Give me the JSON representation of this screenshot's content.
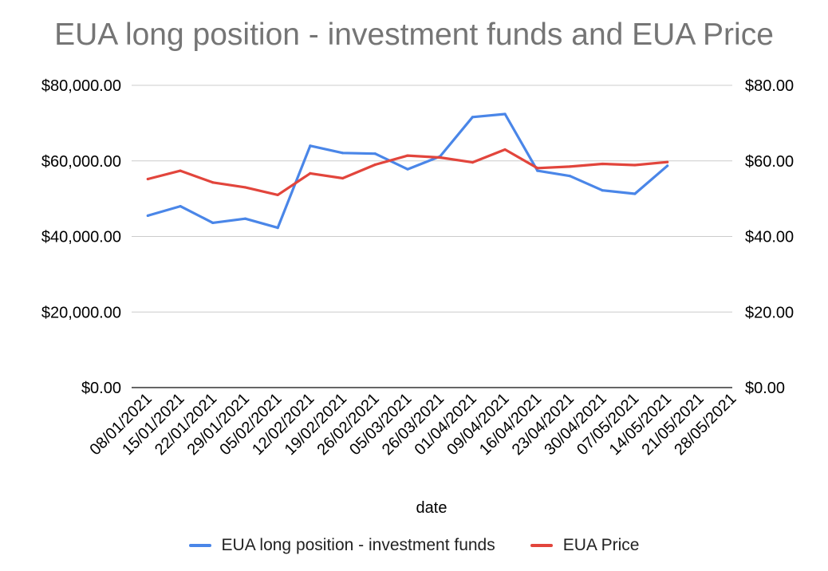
{
  "chart_data": {
    "type": "line",
    "title": "EUA long position - investment funds and EUA Price",
    "xlabel": "date",
    "categories": [
      "08/01/2021",
      "15/01/2021",
      "22/01/2021",
      "29/01/2021",
      "05/02/2021",
      "12/02/2021",
      "19/02/2021",
      "26/02/2021",
      "05/03/2021",
      "26/03/2021",
      "01/04/2021",
      "09/04/2021",
      "16/04/2021",
      "23/04/2021",
      "30/04/2021",
      "07/05/2021",
      "14/05/2021",
      "21/05/2021",
      "28/05/2021"
    ],
    "series": [
      {
        "name": "EUA long position - investment funds",
        "axis": "left",
        "color": "#4a86e8",
        "values": [
          45500,
          48000,
          43600,
          44700,
          42300,
          64000,
          62100,
          61900,
          57800,
          61200,
          71600,
          72400,
          57400,
          56000,
          52200,
          51300,
          58700,
          null,
          null
        ]
      },
      {
        "name": "EUA Price",
        "axis": "right",
        "color": "#e2453c",
        "values": [
          55.2,
          57.4,
          54.3,
          53.0,
          51.0,
          56.7,
          55.4,
          59.0,
          61.4,
          60.9,
          59.6,
          63.0,
          58.1,
          58.5,
          59.2,
          58.9,
          59.7,
          null,
          null
        ]
      }
    ],
    "y_left": {
      "min": 0,
      "max": 80000,
      "ticks": [
        "$0.00",
        "$20,000.00",
        "$40,000.00",
        "$60,000.00",
        "$80,000.00"
      ]
    },
    "y_right": {
      "min": 0,
      "max": 80,
      "ticks": [
        "$0.00",
        "$20.00",
        "$40.00",
        "$60.00",
        "$80.00"
      ]
    },
    "grid": true,
    "legend_position": "bottom"
  }
}
